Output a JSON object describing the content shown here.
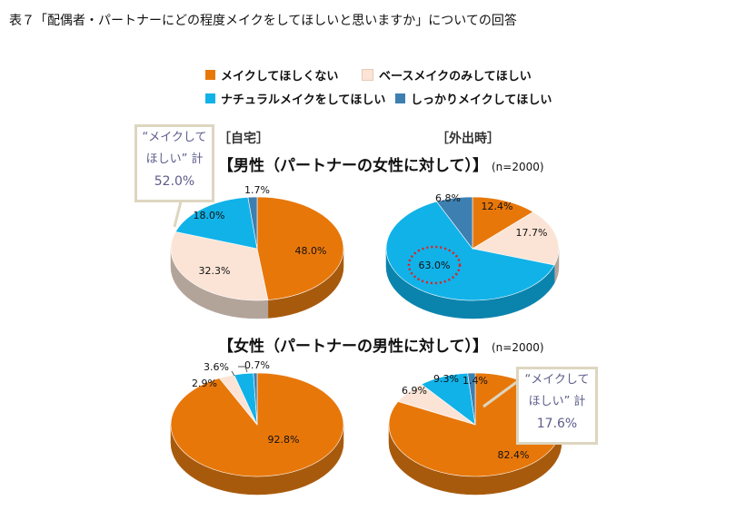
{
  "title": "表７「配偶者・パートナーにどの程度メイクをしてほしいと思いますか」についての回答",
  "legend": [
    {
      "label": "メイクしてほしくない",
      "color": "#e8770a"
    },
    {
      "label": "ベースメイクのみしてほしい",
      "color": "#fbe4d6"
    },
    {
      "label": "ナチュラルメイクをしてほしい",
      "color": "#11b2e8"
    },
    {
      "label": "しっかりメイクしてほしい",
      "color": "#3d7fb1"
    }
  ],
  "columns": {
    "home": "［自宅］",
    "out": "［外出時］"
  },
  "sections": {
    "male": {
      "label": "【男性（パートナーの女性に対して）】",
      "n": "(n=2000)"
    },
    "female": {
      "label": "【女性（パートナーの男性に対して）】",
      "n": "(n=2000)"
    }
  },
  "callouts": {
    "male_home": {
      "line1": "“メイクして",
      "line2": "ほしい” 計",
      "pct": "52.0%"
    },
    "female_out": {
      "line1": "“メイクして",
      "line2": "ほしい” 計",
      "pct": "17.6%"
    }
  },
  "chart_data": [
    {
      "type": "pie",
      "name": "男性・自宅",
      "categories": [
        "メイクしてほしくない",
        "ベースメイクのみしてほしい",
        "ナチュラルメイクをしてほしい",
        "しっかりメイクしてほしい"
      ],
      "values": [
        48.0,
        32.3,
        18.0,
        1.7
      ],
      "labels": [
        "48.0%",
        "32.3%",
        "18.0%",
        "1.7%"
      ]
    },
    {
      "type": "pie",
      "name": "男性・外出時",
      "categories": [
        "メイクしてほしくない",
        "ベースメイクのみしてほしい",
        "ナチュラルメイクをしてほしい",
        "しっかりメイクしてほしい"
      ],
      "values": [
        12.4,
        17.7,
        63.0,
        6.8
      ],
      "labels": [
        "12.4%",
        "17.7%",
        "63.0%",
        "6.8%"
      ]
    },
    {
      "type": "pie",
      "name": "女性・自宅",
      "categories": [
        "メイクしてほしくない",
        "ベースメイクのみしてほしい",
        "ナチュラルメイクをしてほしい",
        "しっかりメイクしてほしい"
      ],
      "values": [
        92.8,
        2.9,
        3.6,
        0.7
      ],
      "labels": [
        "92.8%",
        "2.9%",
        "3.6%",
        "0.7%"
      ]
    },
    {
      "type": "pie",
      "name": "女性・外出時",
      "categories": [
        "メイクしてほしくない",
        "ベースメイクのみしてほしい",
        "ナチュラルメイクをしてほしい",
        "しっかりメイクしてほしい"
      ],
      "values": [
        82.4,
        6.9,
        9.3,
        1.4
      ],
      "labels": [
        "82.4%",
        "6.9%",
        "9.3%",
        "1.4%"
      ]
    }
  ]
}
